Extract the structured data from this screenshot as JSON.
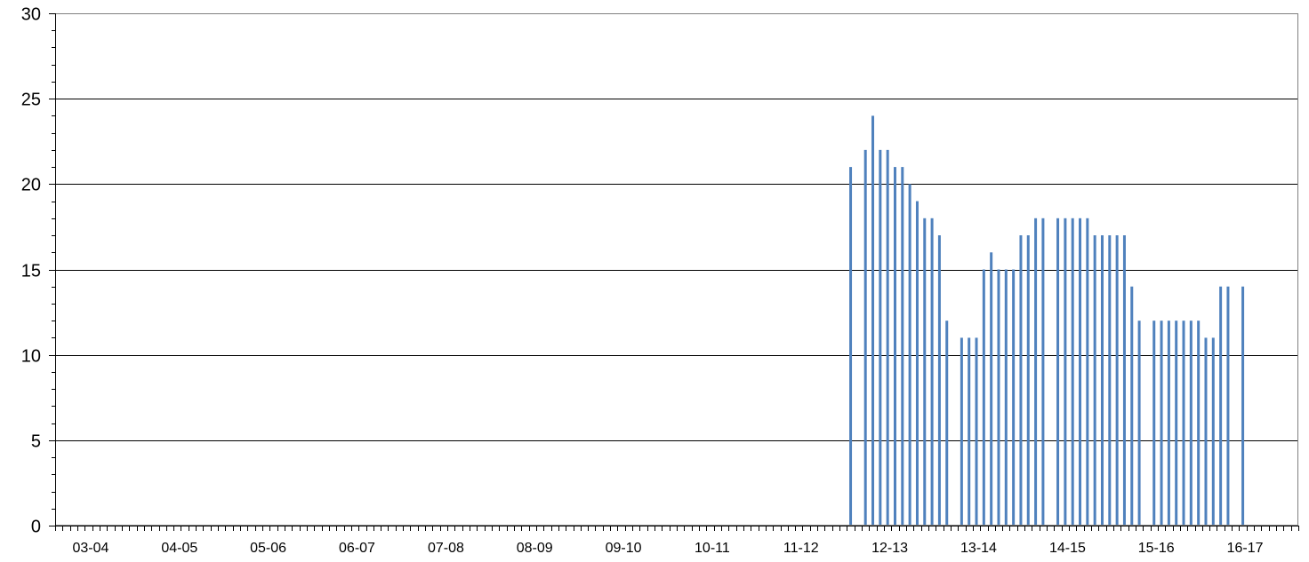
{
  "chart_data": {
    "type": "bar",
    "title": "",
    "xlabel": "",
    "ylabel": "",
    "ylim": [
      0,
      30
    ],
    "y_ticks": [
      0,
      5,
      10,
      15,
      20,
      25,
      30
    ],
    "grid": "horizontal",
    "legend": "none",
    "category_labels": [
      "03-04",
      "04-05",
      "05-06",
      "06-07",
      "07-08",
      "08-09",
      "09-10",
      "10-11",
      "11-12",
      "12-13",
      "13-14",
      "14-15",
      "15-16",
      "16-17"
    ],
    "categories_per_label": 12,
    "series": [
      {
        "color": "#4f81bd",
        "values": [
          0,
          0,
          0,
          0,
          0,
          0,
          0,
          0,
          0,
          0,
          0,
          0,
          0,
          0,
          0,
          0,
          0,
          0,
          0,
          0,
          0,
          0,
          0,
          0,
          0,
          0,
          0,
          0,
          0,
          0,
          0,
          0,
          0,
          0,
          0,
          0,
          0,
          0,
          0,
          0,
          0,
          0,
          0,
          0,
          0,
          0,
          0,
          0,
          0,
          0,
          0,
          0,
          0,
          0,
          0,
          0,
          0,
          0,
          0,
          0,
          0,
          0,
          0,
          0,
          0,
          0,
          0,
          0,
          0,
          0,
          0,
          0,
          0,
          0,
          0,
          0,
          0,
          0,
          0,
          0,
          0,
          0,
          0,
          0,
          0,
          0,
          0,
          0,
          0,
          0,
          0,
          0,
          0,
          0,
          0,
          0,
          0,
          0,
          0,
          0,
          0,
          0,
          0,
          0,
          0,
          0,
          0,
          21,
          0,
          22,
          24,
          22,
          22,
          21,
          21,
          20,
          19,
          18,
          18,
          17,
          12,
          0,
          11,
          11,
          11,
          15,
          16,
          15,
          15,
          15,
          17,
          17,
          18,
          18,
          0,
          18,
          18,
          18,
          18,
          18,
          17,
          17,
          17,
          17,
          17,
          14,
          12,
          0,
          12,
          12,
          12,
          12,
          12,
          12,
          12,
          11,
          11,
          14,
          14,
          0,
          14,
          0,
          0,
          0,
          0,
          0,
          0,
          0
        ]
      }
    ]
  }
}
